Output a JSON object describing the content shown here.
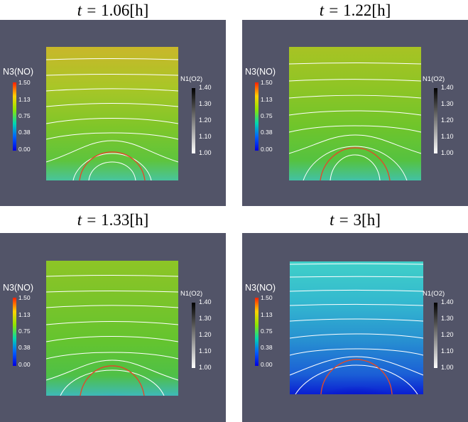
{
  "panels": [
    {
      "title_prefix": "t = ",
      "title_value": "1.06[h]",
      "n3_label": "N3(NO)",
      "n3_ticks": [
        "1.50",
        "1.13",
        "0.75",
        "0.38",
        "0.00"
      ],
      "n1_label": "N1(O2)",
      "n1_ticks": [
        "1.40",
        "1.30",
        "1.20",
        "1.10",
        "1.00"
      ],
      "field_colors": [
        "#c9b72a",
        "#a9c627",
        "#7fc629",
        "#5ec43d",
        "#48c49c"
      ],
      "core_color": "#4ec7c5"
    },
    {
      "title_prefix": "t = ",
      "title_value": "1.22[h]",
      "n3_label": "N3(NO)",
      "n3_ticks": [
        "1.50",
        "1.13",
        "0.75",
        "0.38",
        "0.00"
      ],
      "n1_label": "N1(O2)",
      "n1_ticks": [
        "1.40",
        "1.30",
        "1.20",
        "1.10",
        "1.00"
      ],
      "field_colors": [
        "#a8c324",
        "#8fc525",
        "#6fc52b",
        "#55c240",
        "#43c1a4"
      ],
      "core_color": "#39b9d3"
    },
    {
      "title_prefix": "t = ",
      "title_value": "1.33[h]",
      "n3_label": "N3(NO)",
      "n3_ticks": [
        "1.50",
        "1.13",
        "0.75",
        "0.38",
        "0.00"
      ],
      "n1_label": "N1(O2)",
      "n1_ticks": [
        "1.40",
        "1.30",
        "1.20",
        "1.10",
        "1.00"
      ],
      "field_colors": [
        "#8dc526",
        "#7ac42a",
        "#64c42f",
        "#4fc047",
        "#3eb9b8"
      ],
      "core_color": "#33a6d8"
    },
    {
      "title_prefix": "t = ",
      "title_value": "3[h]",
      "n3_label": "N3(NO)",
      "n3_ticks": [
        "1.50",
        "1.13",
        "0.75",
        "0.38",
        "0.00"
      ],
      "n1_label": "N1(O2)",
      "n1_ticks": [
        "1.40",
        "1.30",
        "1.20",
        "1.10",
        "1.00"
      ],
      "field_colors": [
        "#40d0c8",
        "#34b9cf",
        "#278fd1",
        "#1b5fd6",
        "#0a1ed2"
      ],
      "core_color": "#0710c8"
    }
  ],
  "colors": {
    "viewport_bg": "#525468",
    "contour_lines": "#ffffff",
    "boundary_line": "#e04a2a"
  }
}
